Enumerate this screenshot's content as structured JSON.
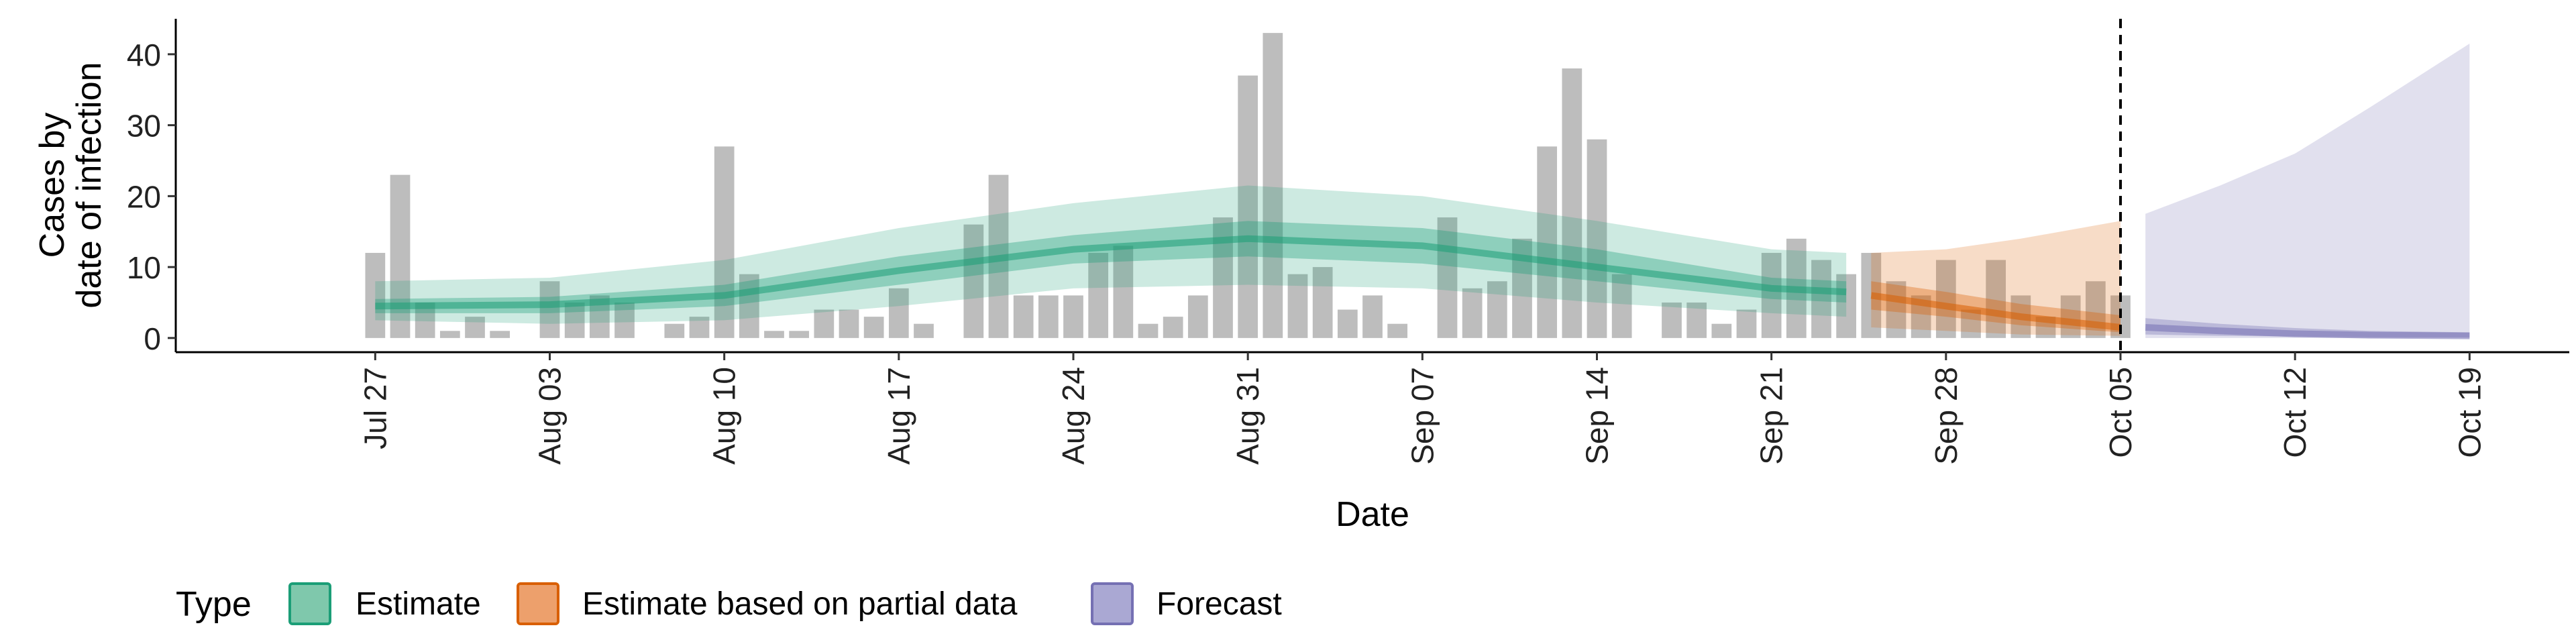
{
  "chart_data": {
    "type": "bar",
    "xlabel": "Date",
    "ylabel_lines": [
      "Cases by",
      "date of infection"
    ],
    "y_ticks": [
      0,
      10,
      20,
      30,
      40
    ],
    "ylim": [
      -2,
      45
    ],
    "x_ticks": [
      {
        "date": "2020-07-27",
        "label": "Jul 27"
      },
      {
        "date": "2020-08-03",
        "label": "Aug 03"
      },
      {
        "date": "2020-08-10",
        "label": "Aug 10"
      },
      {
        "date": "2020-08-17",
        "label": "Aug 17"
      },
      {
        "date": "2020-08-24",
        "label": "Aug 24"
      },
      {
        "date": "2020-08-31",
        "label": "Aug 31"
      },
      {
        "date": "2020-09-07",
        "label": "Sep 07"
      },
      {
        "date": "2020-09-14",
        "label": "Sep 14"
      },
      {
        "date": "2020-09-21",
        "label": "Sep 21"
      },
      {
        "date": "2020-09-28",
        "label": "Sep 28"
      },
      {
        "date": "2020-10-05",
        "label": "Oct 05"
      },
      {
        "date": "2020-10-12",
        "label": "Oct 12"
      },
      {
        "date": "2020-10-19",
        "label": "Oct 19"
      }
    ],
    "xlim": [
      "2020-07-19",
      "2020-10-23"
    ],
    "vline_date": "2020-10-05",
    "bars": {
      "start_date": "2020-07-27",
      "values": [
        12,
        23,
        5,
        1,
        3,
        1,
        0,
        8,
        5,
        6,
        5,
        0,
        2,
        3,
        27,
        9,
        1,
        1,
        4,
        4,
        3,
        7,
        2,
        0,
        16,
        23,
        6,
        6,
        6,
        12,
        13,
        2,
        3,
        6,
        17,
        37,
        43,
        9,
        10,
        4,
        6,
        2,
        0,
        17,
        7,
        8,
        14,
        27,
        38,
        28,
        9,
        0,
        5,
        5,
        2,
        4,
        12,
        14,
        11,
        9,
        12,
        8,
        6,
        11,
        4,
        11,
        6,
        3,
        6,
        8,
        6
      ]
    },
    "estimate": {
      "start_date": "2020-07-27",
      "end_date": "2020-09-24",
      "x": [
        "2020-07-27",
        "2020-08-03",
        "2020-08-10",
        "2020-08-17",
        "2020-08-24",
        "2020-08-31",
        "2020-09-07",
        "2020-09-14",
        "2020-09-21",
        "2020-09-24"
      ],
      "median": [
        4.5,
        4.7,
        6.0,
        9.5,
        12.5,
        14.0,
        13.0,
        10.0,
        7.0,
        6.5
      ],
      "inner_low": [
        3.5,
        3.5,
        4.5,
        7.5,
        10.5,
        11.5,
        10.5,
        8.0,
        5.5,
        5.0
      ],
      "inner_high": [
        5.5,
        5.8,
        7.5,
        11.5,
        14.5,
        16.5,
        15.5,
        12.5,
        8.5,
        8.0
      ],
      "outer_low": [
        2.5,
        2.0,
        2.5,
        4.5,
        7.0,
        7.5,
        7.0,
        5.0,
        3.5,
        3.0
      ],
      "outer_high": [
        8.0,
        8.5,
        11.0,
        15.5,
        19.0,
        21.5,
        20.0,
        16.5,
        12.5,
        12.0
      ]
    },
    "partial": {
      "x": [
        "2020-09-25",
        "2020-09-28",
        "2020-10-01",
        "2020-10-05"
      ],
      "median": [
        6.0,
        4.5,
        3.0,
        1.5
      ],
      "inner_low": [
        4.0,
        3.0,
        1.8,
        0.8
      ],
      "inner_high": [
        8.0,
        6.5,
        4.8,
        3.2
      ],
      "outer_low": [
        1.5,
        1.0,
        0.5,
        0.3
      ],
      "outer_high": [
        12.0,
        12.5,
        14.0,
        16.5
      ]
    },
    "forecast": {
      "x": [
        "2020-10-06",
        "2020-10-09",
        "2020-10-12",
        "2020-10-15",
        "2020-10-19"
      ],
      "median": [
        1.5,
        1.0,
        0.6,
        0.4,
        0.3
      ],
      "inner_low": [
        0.5,
        0.3,
        0.2,
        0.1,
        0.1
      ],
      "inner_high": [
        2.8,
        2.0,
        1.4,
        1.0,
        0.8
      ],
      "outer_low": [
        0.0,
        0.0,
        0.0,
        0.0,
        0.0
      ],
      "outer_high": [
        17.5,
        21.5,
        26.0,
        32.5,
        41.5
      ]
    },
    "legend": {
      "title": "Type",
      "placement": "bottom",
      "entries": [
        {
          "label": "Estimate",
          "fill": "#7fc8ac",
          "stroke": "#1b9e77"
        },
        {
          "label": "Estimate based on partial data",
          "fill": "#eda06c",
          "stroke": "#d95f02"
        },
        {
          "label": "Forecast",
          "fill": "#aaa8d3",
          "stroke": "#7570b3"
        }
      ]
    },
    "colors": {
      "bar": "#bdbdbd",
      "estimate": "#1b9e77",
      "partial": "#d95f02",
      "forecast": "#7570b3"
    }
  }
}
